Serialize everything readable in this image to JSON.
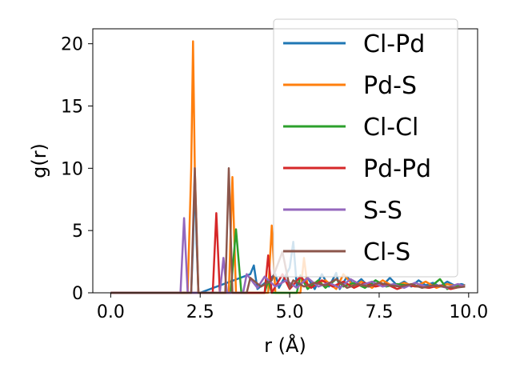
{
  "chart_data": {
    "type": "line",
    "xlabel": "r (Å)",
    "ylabel": "g(r)",
    "xlim": [
      -0.5,
      10.25
    ],
    "ylim": [
      0,
      21.2
    ],
    "xticks": [
      0.0,
      2.5,
      5.0,
      7.5,
      10.0
    ],
    "xtick_labels": [
      "0.0",
      "2.5",
      "5.0",
      "7.5",
      "10.0"
    ],
    "yticks": [
      0,
      5,
      10,
      15,
      20
    ],
    "ytick_labels": [
      "0",
      "5",
      "10",
      "15",
      "20"
    ],
    "grid": false,
    "legend_position": "top-right",
    "series": [
      {
        "name": "Cl-Pd",
        "color": "#1f77b4",
        "x": [
          0,
          2.25,
          2.3,
          2.35,
          2.4,
          2.45,
          2.5,
          3.9,
          4.0,
          4.1,
          4.6,
          4.7,
          5.0,
          5.1,
          5.2,
          5.5,
          5.7,
          5.9,
          6.1,
          6.3,
          6.4,
          6.6,
          6.8,
          7.0,
          7.2,
          7.4,
          7.6,
          7.8,
          8.0,
          8.2,
          8.4,
          8.6,
          8.8,
          9.0,
          9.2,
          9.4,
          9.6,
          9.8,
          9.9
        ],
        "y": [
          0,
          0,
          4,
          9.5,
          4,
          0,
          0,
          1.5,
          2.2,
          0.3,
          1.5,
          0.4,
          2.0,
          4.1,
          0.5,
          1.2,
          0.3,
          1.5,
          0.5,
          1.6,
          0.3,
          1.3,
          0.6,
          1.1,
          0.5,
          1.0,
          0.6,
          1.2,
          0.6,
          0.9,
          0.5,
          1.0,
          0.6,
          0.8,
          0.5,
          0.9,
          0.6,
          0.7,
          0.6
        ]
      },
      {
        "name": "Pd-S",
        "color": "#ff7f0e",
        "x": [
          0,
          2.15,
          2.25,
          2.3,
          2.35,
          2.45,
          3.3,
          3.4,
          3.5,
          4.4,
          4.5,
          4.6,
          5.3,
          5.4,
          5.5,
          6.0,
          6.3,
          6.5,
          6.8,
          7.0,
          7.3,
          7.6,
          7.9,
          8.2,
          8.5,
          8.8,
          9.1,
          9.4,
          9.7,
          9.9
        ],
        "y": [
          0,
          0,
          10,
          20.2,
          10,
          0,
          0,
          9.3,
          0,
          0,
          5.4,
          0,
          0,
          2.8,
          0.5,
          1.0,
          0.3,
          1.5,
          0.5,
          0.9,
          0.4,
          1.0,
          0.5,
          0.8,
          0.5,
          0.9,
          0.4,
          0.7,
          0.5,
          0.6
        ]
      },
      {
        "name": "Cl-Cl",
        "color": "#2ca02c",
        "x": [
          0,
          3.35,
          3.5,
          3.65,
          4.3,
          4.4,
          4.5,
          5.2,
          5.3,
          5.5,
          5.8,
          6.0,
          6.3,
          6.5,
          6.8,
          7.1,
          7.4,
          7.7,
          8.0,
          8.3,
          8.6,
          8.9,
          9.2,
          9.4,
          9.6,
          9.9
        ],
        "y": [
          0,
          0,
          5.1,
          0,
          0,
          1.0,
          0,
          0,
          1.4,
          0.3,
          1.0,
          0.4,
          1.1,
          0.5,
          0.8,
          0.4,
          1.0,
          0.5,
          0.7,
          0.6,
          0.5,
          0.4,
          1.1,
          0.3,
          0.6,
          0.5
        ]
      },
      {
        "name": "Pd-Pd",
        "color": "#d62728",
        "x": [
          0,
          2.85,
          2.95,
          3.05,
          4.3,
          4.4,
          4.5,
          4.8,
          5.0,
          5.3,
          5.6,
          5.9,
          6.2,
          6.5,
          6.8,
          7.1,
          7.4,
          7.7,
          8.0,
          8.3,
          8.6,
          8.9,
          9.2,
          9.5,
          9.8
        ],
        "y": [
          0,
          0,
          6.4,
          0,
          0,
          3.0,
          0,
          1.5,
          0.3,
          1.3,
          0.4,
          1.0,
          0.5,
          0.9,
          0.4,
          0.8,
          0.5,
          0.7,
          0.3,
          0.6,
          0.5,
          0.4,
          0.6,
          0.3,
          0.5
        ]
      },
      {
        "name": "S-S",
        "color": "#9467bd",
        "x": [
          0,
          1.95,
          2.05,
          2.15,
          3.05,
          3.15,
          3.25,
          3.7,
          3.8,
          4.1,
          4.3,
          4.6,
          4.9,
          5.2,
          5.5,
          5.8,
          6.1,
          6.4,
          6.7,
          7.0,
          7.3,
          7.6,
          7.9,
          8.2,
          8.5,
          8.8,
          9.1,
          9.4,
          9.7,
          9.9
        ],
        "y": [
          0,
          0,
          6.0,
          0,
          0,
          2.8,
          0,
          0,
          1.5,
          0.4,
          1.3,
          0.5,
          1.0,
          0.4,
          1.2,
          0.5,
          0.8,
          0.4,
          1.1,
          0.6,
          0.9,
          0.5,
          0.7,
          0.4,
          0.8,
          0.5,
          0.6,
          0.4,
          0.7,
          0.5
        ]
      },
      {
        "name": "Cl-S",
        "color": "#8c564b",
        "x": [
          0,
          2.25,
          2.35,
          2.45,
          3.2,
          3.3,
          3.4,
          3.8,
          3.9,
          4.2,
          4.5,
          4.8,
          5.0,
          5.1,
          5.4,
          5.7,
          6.0,
          6.3,
          6.6,
          6.9,
          7.2,
          7.5,
          7.8,
          8.1,
          8.4,
          8.7,
          9.0,
          9.3,
          9.6,
          9.9
        ],
        "y": [
          0,
          0,
          10.0,
          0,
          0,
          10.0,
          0,
          0,
          1.2,
          0.5,
          1.0,
          3.3,
          0.4,
          1.0,
          0.5,
          0.8,
          0.6,
          1.1,
          0.4,
          0.7,
          0.5,
          0.8,
          0.6,
          0.5,
          0.7,
          0.4,
          0.6,
          0.5,
          0.4,
          0.5
        ]
      }
    ]
  }
}
